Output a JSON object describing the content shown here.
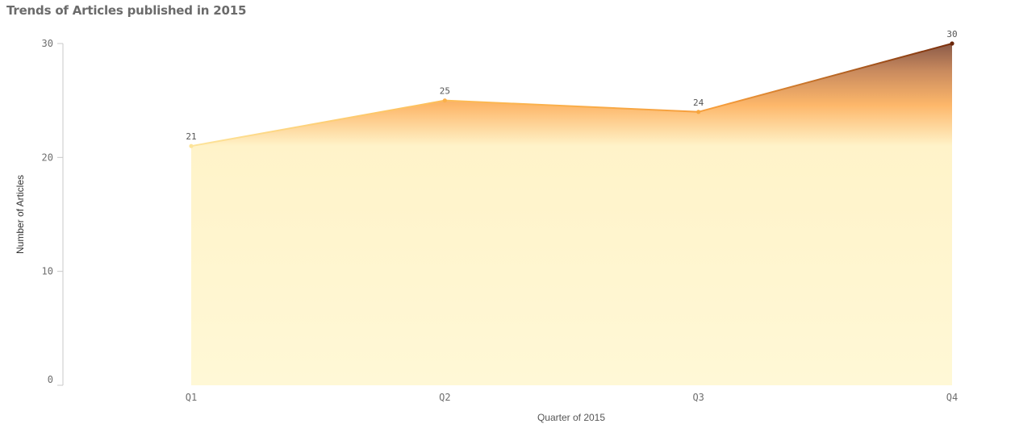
{
  "chart_data": {
    "type": "area",
    "title": "Trends of Articles published in 2015",
    "xlabel": "Quarter of 2015",
    "ylabel": "Number of Articles",
    "categories": [
      "Q1",
      "Q2",
      "Q3",
      "Q4"
    ],
    "values": [
      21,
      25,
      24,
      30
    ],
    "yticks": [
      0,
      10,
      20,
      30
    ],
    "ylim": [
      0,
      30
    ],
    "grid": false,
    "legend": "none",
    "colors": {
      "low": "#fff8d6",
      "mid": "#fdb147",
      "high": "#8c3b14",
      "line_low": "#fde49a",
      "line_high": "#7a2e0c"
    }
  }
}
